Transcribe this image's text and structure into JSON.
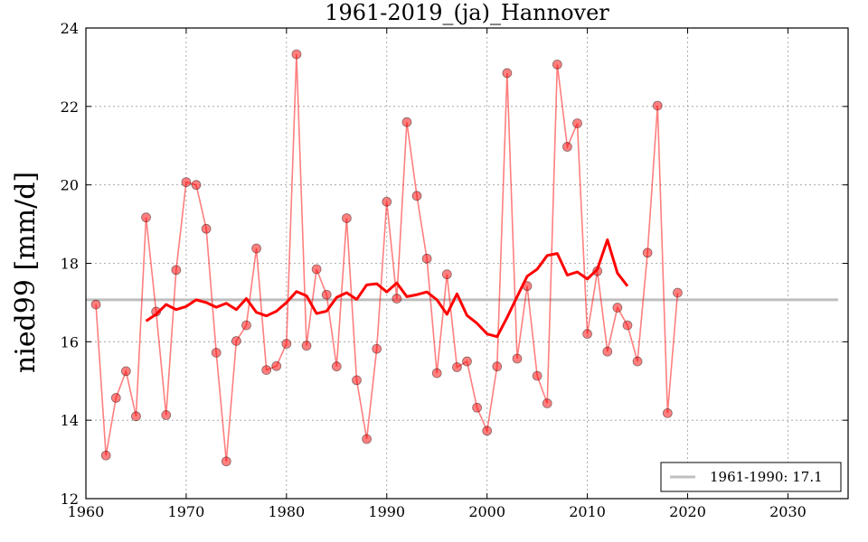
{
  "chart_data": {
    "type": "line",
    "title": "1961-2019_(ja)_Hannover",
    "xlabel": "",
    "ylabel": "nied99 [mm/d]",
    "xlim": [
      1960,
      2036
    ],
    "ylim": [
      12,
      24
    ],
    "xticks": [
      1960,
      1970,
      1980,
      1990,
      2000,
      2010,
      2020,
      2030
    ],
    "yticks": [
      12,
      14,
      16,
      18,
      20,
      22,
      24
    ],
    "grid": true,
    "legend_position": "bottom-right",
    "series": [
      {
        "kind": "line-with-markers",
        "color": "#ff0000",
        "opacity": 0.5,
        "x": [
          1961,
          1962,
          1963,
          1964,
          1965,
          1966,
          1967,
          1968,
          1969,
          1970,
          1971,
          1972,
          1973,
          1974,
          1975,
          1976,
          1977,
          1978,
          1979,
          1980,
          1981,
          1982,
          1983,
          1984,
          1985,
          1986,
          1987,
          1988,
          1989,
          1990,
          1991,
          1992,
          1993,
          1994,
          1995,
          1996,
          1997,
          1998,
          1999,
          2000,
          2001,
          2002,
          2003,
          2004,
          2005,
          2006,
          2007,
          2008,
          2009,
          2010,
          2011,
          2012,
          2013,
          2014,
          2015,
          2016,
          2017,
          2018,
          2019
        ],
        "y": [
          16.95,
          13.1,
          14.57,
          15.25,
          14.1,
          19.17,
          16.77,
          14.13,
          17.83,
          20.07,
          20.0,
          18.88,
          15.72,
          12.95,
          16.02,
          16.42,
          18.38,
          15.28,
          15.38,
          15.95,
          23.33,
          15.9,
          17.85,
          17.2,
          15.37,
          19.15,
          15.02,
          13.52,
          15.82,
          19.57,
          17.1,
          21.6,
          19.72,
          18.12,
          15.2,
          17.72,
          15.35,
          15.5,
          14.32,
          13.73,
          15.37,
          22.85,
          15.57,
          17.42,
          15.13,
          14.43,
          23.07,
          20.97,
          21.57,
          16.2,
          17.8,
          15.75,
          16.87,
          16.42,
          15.5,
          18.27,
          22.02,
          14.18,
          17.25
        ]
      },
      {
        "kind": "line",
        "color": "#ff0000",
        "x": [
          1966,
          1967,
          1968,
          1969,
          1970,
          1971,
          1972,
          1973,
          1974,
          1975,
          1976,
          1977,
          1978,
          1979,
          1980,
          1981,
          1982,
          1983,
          1984,
          1985,
          1986,
          1987,
          1988,
          1989,
          1990,
          1991,
          1992,
          1993,
          1994,
          1995,
          1996,
          1997,
          1998,
          1999,
          2000,
          2001,
          2002,
          2003,
          2004,
          2005,
          2006,
          2007,
          2008,
          2009,
          2010,
          2011,
          2012,
          2013,
          2014
        ],
        "y": [
          16.53,
          16.7,
          16.95,
          16.82,
          16.9,
          17.07,
          17.0,
          16.88,
          16.98,
          16.82,
          17.1,
          16.75,
          16.66,
          16.78,
          17.0,
          17.28,
          17.17,
          16.72,
          16.78,
          17.13,
          17.25,
          17.08,
          17.45,
          17.48,
          17.27,
          17.5,
          17.15,
          17.2,
          17.27,
          17.07,
          16.7,
          17.22,
          16.67,
          16.47,
          16.2,
          16.13,
          16.62,
          17.15,
          17.67,
          17.85,
          18.2,
          18.25,
          17.7,
          17.78,
          17.6,
          17.85,
          18.6,
          17.75,
          17.42
        ]
      },
      {
        "kind": "hline",
        "name": "1961-1990: 17.1",
        "color": "#bfbfbf",
        "x_range": [
          1960,
          2035
        ],
        "value": 17.07
      }
    ]
  }
}
